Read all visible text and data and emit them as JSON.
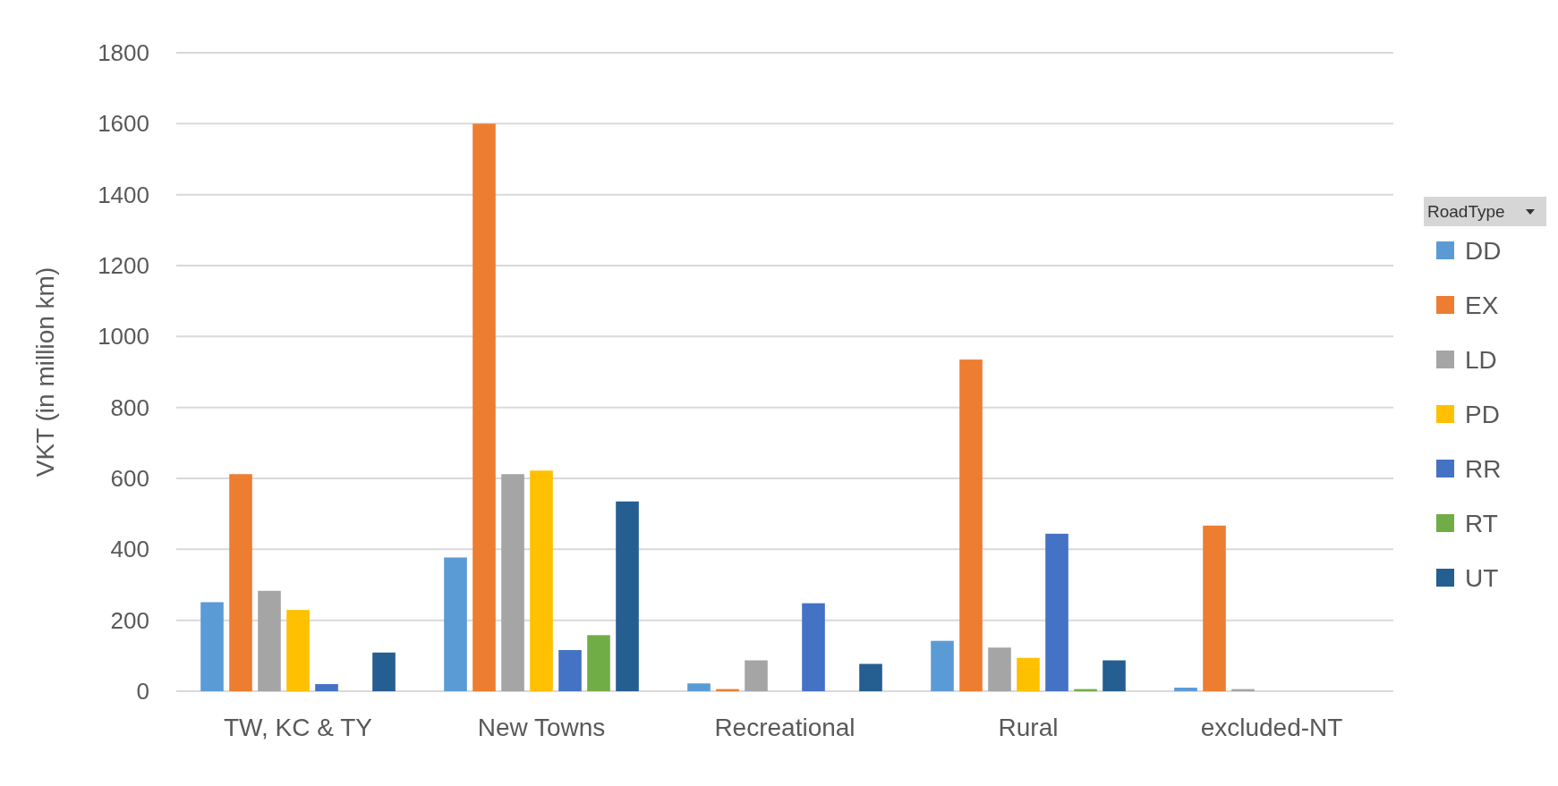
{
  "chart_data": {
    "type": "bar",
    "ylabel": "VKT (in million km)",
    "legend_title": "RoadType",
    "categories": [
      "TW, KC & TY",
      "New Towns",
      "Recreational",
      "Rural",
      "excluded-NT"
    ],
    "series": [
      {
        "name": "DD",
        "color": "#5b9bd5",
        "values": [
          251,
          377,
          22,
          142,
          10
        ]
      },
      {
        "name": "EX",
        "color": "#ed7d31",
        "values": [
          612,
          1600,
          6,
          935,
          467
        ]
      },
      {
        "name": "LD",
        "color": "#a5a5a5",
        "values": [
          283,
          612,
          87,
          123,
          6
        ]
      },
      {
        "name": "PD",
        "color": "#ffc000",
        "values": [
          229,
          622,
          null,
          94,
          null
        ]
      },
      {
        "name": "RR",
        "color": "#4472c4",
        "values": [
          20,
          116,
          248,
          444,
          null
        ]
      },
      {
        "name": "RT",
        "color": "#70ad47",
        "values": [
          null,
          158,
          null,
          6,
          null
        ]
      },
      {
        "name": "UT",
        "color": "#255e91",
        "values": [
          109,
          535,
          77,
          87,
          null
        ]
      }
    ],
    "ylim": [
      0,
      1800
    ],
    "yticks": [
      0,
      200,
      400,
      600,
      800,
      1000,
      1200,
      1400,
      1600,
      1800
    ],
    "grid": "y",
    "legend": "right"
  }
}
